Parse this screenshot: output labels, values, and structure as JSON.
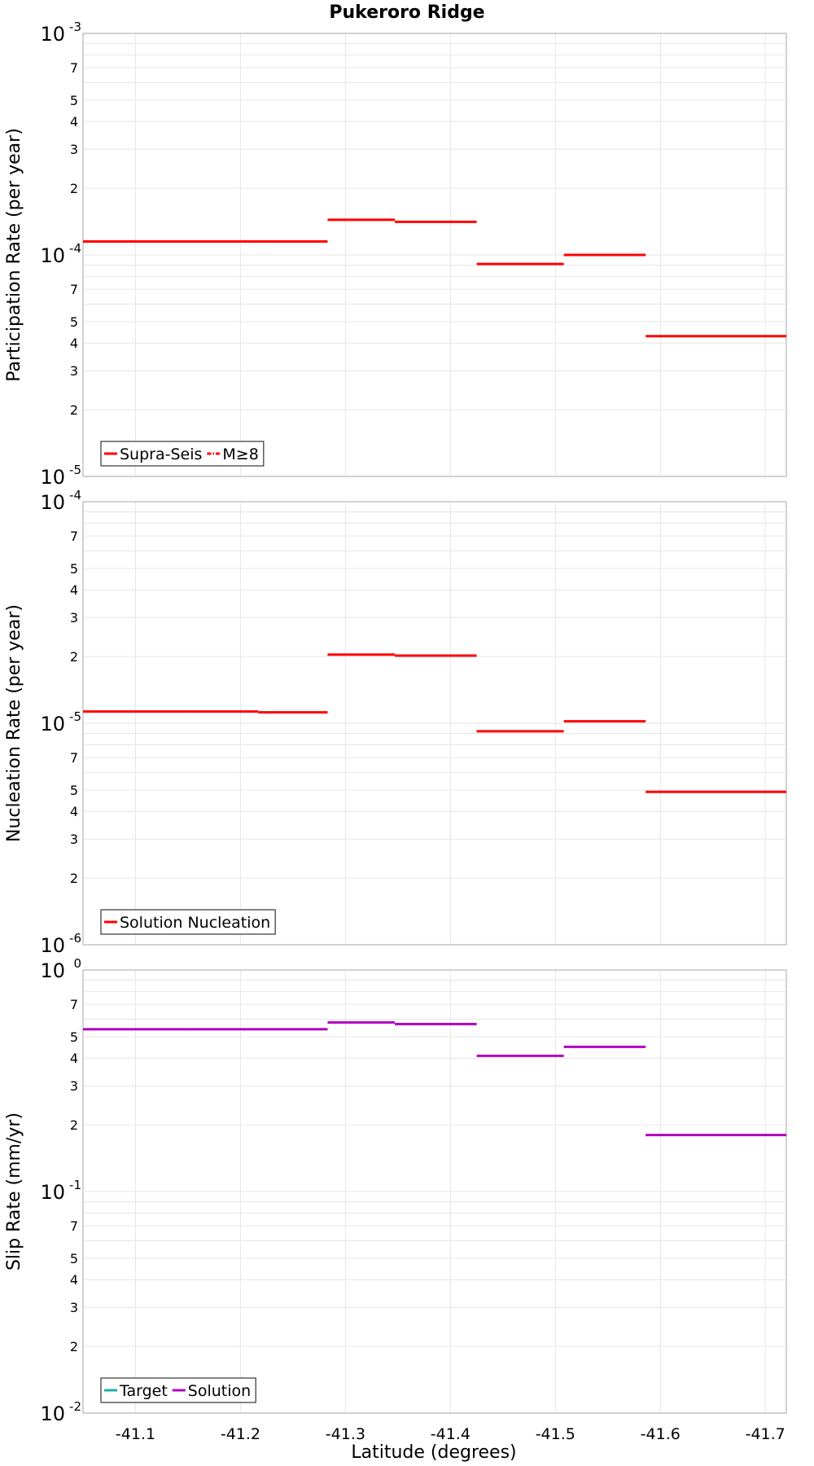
{
  "chart_data": {
    "type": "line",
    "title": "Pukeroro Ridge",
    "xlabel": "Latitude (degrees)",
    "xlim": [
      -41.05,
      -41.72
    ],
    "x_ticks": [
      -41.1,
      -41.2,
      -41.3,
      -41.4,
      -41.5,
      -41.6,
      -41.7
    ],
    "x_tick_labels": [
      "-41.1",
      "-41.2",
      "-41.3",
      "-41.4",
      "-41.5",
      "-41.6",
      "-41.7"
    ],
    "subplots": [
      {
        "ylabel": "Participation Rate (per year)",
        "yscale": "log",
        "ylim": [
          1e-05,
          0.001
        ],
        "major_ticks": [
          {
            "mantissa": "10",
            "exponent": "-5"
          },
          {
            "mantissa": "10",
            "exponent": "-4"
          },
          {
            "mantissa": "10",
            "exponent": "-3"
          }
        ],
        "minor_labels": [
          "2",
          "3",
          "4",
          "5",
          "7"
        ],
        "legend_position": "bottom-left",
        "legend": [
          {
            "name": "Supra-Seis",
            "color": "#ff0000",
            "dash": "solid"
          },
          {
            "name": "M≥8",
            "color": "#ff0000",
            "dash": "dashdot"
          }
        ],
        "series": [
          {
            "name": "Supra-Seis",
            "color": "#ff0000",
            "segments": [
              {
                "x": [
                  -41.05,
                  -41.15
                ],
                "y": 0.000115
              },
              {
                "x": [
                  -41.15,
                  -41.217
                ],
                "y": 0.000115
              },
              {
                "x": [
                  -41.217,
                  -41.283
                ],
                "y": 0.000115
              },
              {
                "x": [
                  -41.283,
                  -41.347
                ],
                "y": 0.000144
              },
              {
                "x": [
                  -41.347,
                  -41.425
                ],
                "y": 0.000141
              },
              {
                "x": [
                  -41.425,
                  -41.508
                ],
                "y": 9.1e-05
              },
              {
                "x": [
                  -41.508,
                  -41.586
                ],
                "y": 0.0001
              },
              {
                "x": [
                  -41.586,
                  -41.72
                ],
                "y": 4.3e-05
              }
            ]
          }
        ]
      },
      {
        "ylabel": "Nucleation Rate (per year)",
        "yscale": "log",
        "ylim": [
          1e-06,
          0.0001
        ],
        "major_ticks": [
          {
            "mantissa": "10",
            "exponent": "-6"
          },
          {
            "mantissa": "10",
            "exponent": "-5"
          },
          {
            "mantissa": "10",
            "exponent": "-4"
          }
        ],
        "minor_labels": [
          "2",
          "3",
          "4",
          "5",
          "7"
        ],
        "legend_position": "bottom-left",
        "legend": [
          {
            "name": "Solution Nucleation",
            "color": "#ff0000",
            "dash": "solid"
          }
        ],
        "series": [
          {
            "name": "Solution Nucleation",
            "color": "#ff0000",
            "segments": [
              {
                "x": [
                  -41.05,
                  -41.15
                ],
                "y": 1.13e-05
              },
              {
                "x": [
                  -41.15,
                  -41.217
                ],
                "y": 1.13e-05
              },
              {
                "x": [
                  -41.217,
                  -41.283
                ],
                "y": 1.12e-05
              },
              {
                "x": [
                  -41.283,
                  -41.347
                ],
                "y": 2.04e-05
              },
              {
                "x": [
                  -41.347,
                  -41.425
                ],
                "y": 2.02e-05
              },
              {
                "x": [
                  -41.425,
                  -41.508
                ],
                "y": 9.2e-06
              },
              {
                "x": [
                  -41.508,
                  -41.586
                ],
                "y": 1.02e-05
              },
              {
                "x": [
                  -41.586,
                  -41.72
                ],
                "y": 4.9e-06
              }
            ]
          }
        ]
      },
      {
        "ylabel": "Slip Rate (mm/yr)",
        "yscale": "log",
        "ylim": [
          0.01,
          1
        ],
        "major_ticks": [
          {
            "mantissa": "10",
            "exponent": "-2"
          },
          {
            "mantissa": "10",
            "exponent": "-1"
          },
          {
            "mantissa": "10",
            "exponent": "0"
          }
        ],
        "minor_labels": [
          "2",
          "3",
          "4",
          "5",
          "7"
        ],
        "legend_position": "bottom-left",
        "legend": [
          {
            "name": "Target",
            "color": "#1aaeae",
            "dash": "solid"
          },
          {
            "name": "Solution",
            "color": "#b000c0",
            "dash": "solid"
          }
        ],
        "series": [
          {
            "name": "Solution",
            "color": "#b000c0",
            "segments": [
              {
                "x": [
                  -41.05,
                  -41.15
                ],
                "y": 0.54
              },
              {
                "x": [
                  -41.15,
                  -41.217
                ],
                "y": 0.54
              },
              {
                "x": [
                  -41.217,
                  -41.283
                ],
                "y": 0.54
              },
              {
                "x": [
                  -41.283,
                  -41.347
                ],
                "y": 0.58
              },
              {
                "x": [
                  -41.347,
                  -41.425
                ],
                "y": 0.57
              },
              {
                "x": [
                  -41.425,
                  -41.508
                ],
                "y": 0.41
              },
              {
                "x": [
                  -41.508,
                  -41.586
                ],
                "y": 0.45
              },
              {
                "x": [
                  -41.586,
                  -41.72
                ],
                "y": 0.18
              }
            ]
          }
        ]
      }
    ]
  }
}
